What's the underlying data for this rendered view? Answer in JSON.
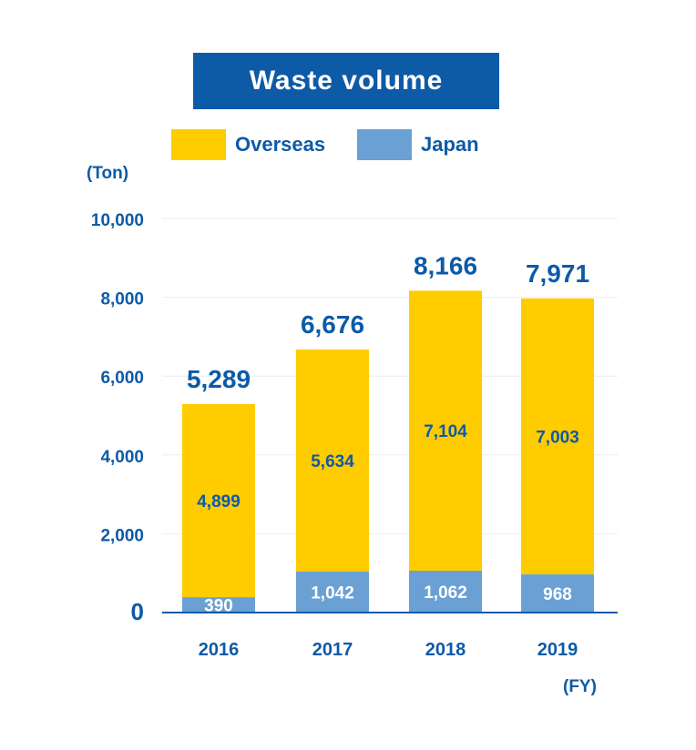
{
  "title": "Waste volume",
  "legend": [
    {
      "label": "Overseas",
      "color": "#ffcc00"
    },
    {
      "label": "Japan",
      "color": "#6aa0d4"
    }
  ],
  "y_unit": "(Ton)",
  "x_unit": "(FY)",
  "colors": {
    "accent": "#0d5aa7",
    "overseas": "#ffcc00",
    "japan": "#6aa0d4",
    "grid": "#e6eef7"
  },
  "chart_data": {
    "type": "bar",
    "stacked": true,
    "categories": [
      "2016",
      "2017",
      "2018",
      "2019"
    ],
    "series": [
      {
        "name": "Japan",
        "values": [
          390,
          1042,
          1062,
          968
        ],
        "labels": [
          "390",
          "1,042",
          "1,062",
          "968"
        ]
      },
      {
        "name": "Overseas",
        "values": [
          4899,
          5634,
          7104,
          7003
        ],
        "labels": [
          "4,899",
          "5,634",
          "7,104",
          "7,003"
        ]
      }
    ],
    "totals": [
      5289,
      6676,
      8166,
      7971
    ],
    "total_labels": [
      "5,289",
      "6,676",
      "8,166",
      "7,971"
    ],
    "title": "Waste volume",
    "ylabel": "(Ton)",
    "xlabel": "(FY)",
    "ylim": [
      0,
      10000
    ],
    "yticks": [
      0,
      2000,
      4000,
      6000,
      8000,
      10000
    ],
    "ytick_labels": [
      "0",
      "2,000",
      "4,000",
      "6,000",
      "8,000",
      "10,000"
    ],
    "grid": true,
    "legend_position": "top"
  }
}
